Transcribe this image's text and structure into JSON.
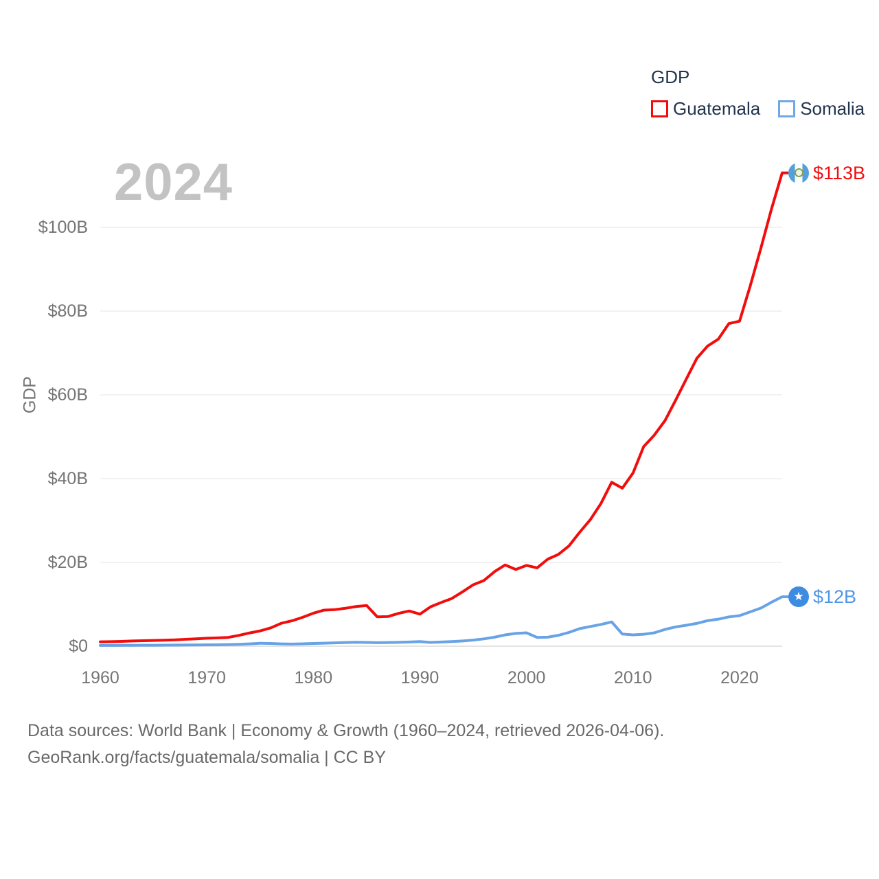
{
  "watermark": "2024",
  "legend": {
    "title": "GDP",
    "items": [
      {
        "label": "Guatemala",
        "swatch_color": "#f20d0d"
      },
      {
        "label": "Somalia",
        "swatch_color": "#6fa8e8"
      }
    ]
  },
  "y_axis": {
    "label": "GDP",
    "ticks": [
      "$0",
      "$20B",
      "$40B",
      "$60B",
      "$80B",
      "$100B"
    ],
    "tick_values": [
      0,
      20,
      40,
      60,
      80,
      100
    ]
  },
  "x_axis": {
    "ticks": [
      "1960",
      "1970",
      "1980",
      "1990",
      "2000",
      "2010",
      "2020"
    ],
    "tick_values": [
      1960,
      1970,
      1980,
      1990,
      2000,
      2010,
      2020
    ]
  },
  "end_labels": {
    "guatemala": "$113B",
    "somalia": "$12B"
  },
  "flags": {
    "guatemala": "guatemala-flag-icon",
    "somalia": "somalia-flag-icon"
  },
  "footer": {
    "line1": "Data sources: World Bank | Economy & Growth (1960–2024, retrieved 2026-04-06).",
    "line2": "GeoRank.org/facts/guatemala/somalia | CC BY"
  },
  "chart_data": {
    "type": "line",
    "title": "GDP",
    "xlabel": "",
    "ylabel": "GDP",
    "xlim": [
      1960,
      2024
    ],
    "ylim": [
      0,
      113
    ],
    "grid": true,
    "legend_position": "top-right",
    "x": [
      1960,
      1961,
      1962,
      1963,
      1964,
      1965,
      1966,
      1967,
      1968,
      1969,
      1970,
      1971,
      1972,
      1973,
      1974,
      1975,
      1976,
      1977,
      1978,
      1979,
      1980,
      1981,
      1982,
      1983,
      1984,
      1985,
      1986,
      1987,
      1988,
      1989,
      1990,
      1991,
      1992,
      1993,
      1994,
      1995,
      1996,
      1997,
      1998,
      1999,
      2000,
      2001,
      2002,
      2003,
      2004,
      2005,
      2006,
      2007,
      2008,
      2009,
      2010,
      2011,
      2012,
      2013,
      2014,
      2015,
      2016,
      2017,
      2018,
      2019,
      2020,
      2021,
      2022,
      2023,
      2024
    ],
    "series": [
      {
        "name": "Guatemala",
        "unit": "billion USD",
        "color": "#f20d0d",
        "label_color": "#f20d0d",
        "values": [
          1.04,
          1.08,
          1.14,
          1.25,
          1.32,
          1.37,
          1.43,
          1.51,
          1.65,
          1.77,
          1.9,
          1.99,
          2.1,
          2.57,
          3.16,
          3.65,
          4.37,
          5.48,
          6.07,
          6.9,
          7.88,
          8.61,
          8.72,
          9.05,
          9.47,
          9.72,
          7.01,
          7.08,
          7.84,
          8.41,
          7.65,
          9.41,
          10.44,
          11.4,
          12.98,
          14.66,
          15.67,
          17.79,
          19.4,
          18.32,
          19.29,
          18.7,
          20.78,
          21.92,
          23.97,
          27.21,
          30.23,
          34.11,
          39.14,
          37.73,
          41.34,
          47.65,
          50.39,
          53.85,
          58.72,
          63.77,
          68.76,
          71.65,
          73.28,
          77.02,
          77.6,
          86.0,
          95.0,
          104.4,
          113.0
        ]
      },
      {
        "name": "Somalia",
        "unit": "billion USD",
        "color": "#68a3e6",
        "label_color": "#4f96e5",
        "values": [
          0.18,
          0.19,
          0.2,
          0.21,
          0.22,
          0.23,
          0.25,
          0.27,
          0.28,
          0.3,
          0.32,
          0.35,
          0.38,
          0.45,
          0.55,
          0.7,
          0.65,
          0.56,
          0.52,
          0.58,
          0.65,
          0.72,
          0.8,
          0.88,
          0.95,
          0.9,
          0.85,
          0.88,
          0.93,
          1.0,
          1.1,
          0.9,
          1.0,
          1.1,
          1.25,
          1.45,
          1.75,
          2.15,
          2.7,
          3.05,
          3.2,
          2.1,
          2.15,
          2.6,
          3.3,
          4.2,
          4.7,
          5.2,
          5.8,
          2.9,
          2.7,
          2.85,
          3.2,
          4.0,
          4.6,
          5.0,
          5.45,
          6.1,
          6.45,
          7.0,
          7.3,
          8.2,
          9.1,
          10.5,
          11.8
        ]
      }
    ]
  }
}
